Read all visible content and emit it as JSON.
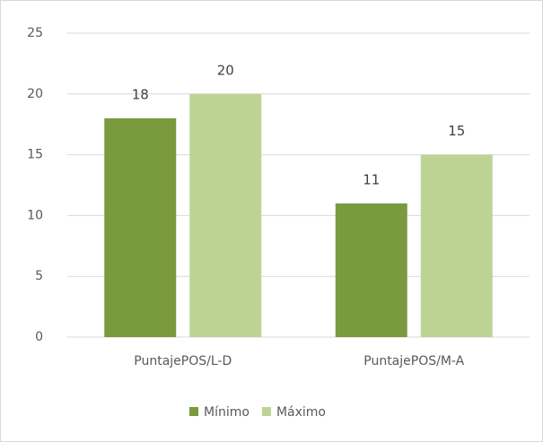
{
  "chart_data": {
    "type": "bar",
    "categories": [
      "PuntajePOS/L-D",
      "PuntajePOS/M-A"
    ],
    "series": [
      {
        "name": "Mínimo",
        "color": "#7a9a3e",
        "values": [
          18,
          11
        ]
      },
      {
        "name": "Máximo",
        "color": "#bdd394",
        "values": [
          20,
          15
        ]
      }
    ],
    "ylim": [
      0,
      25
    ],
    "yticks": [
      0,
      5,
      10,
      15,
      20,
      25
    ],
    "grid": true,
    "legend": "bottom"
  }
}
